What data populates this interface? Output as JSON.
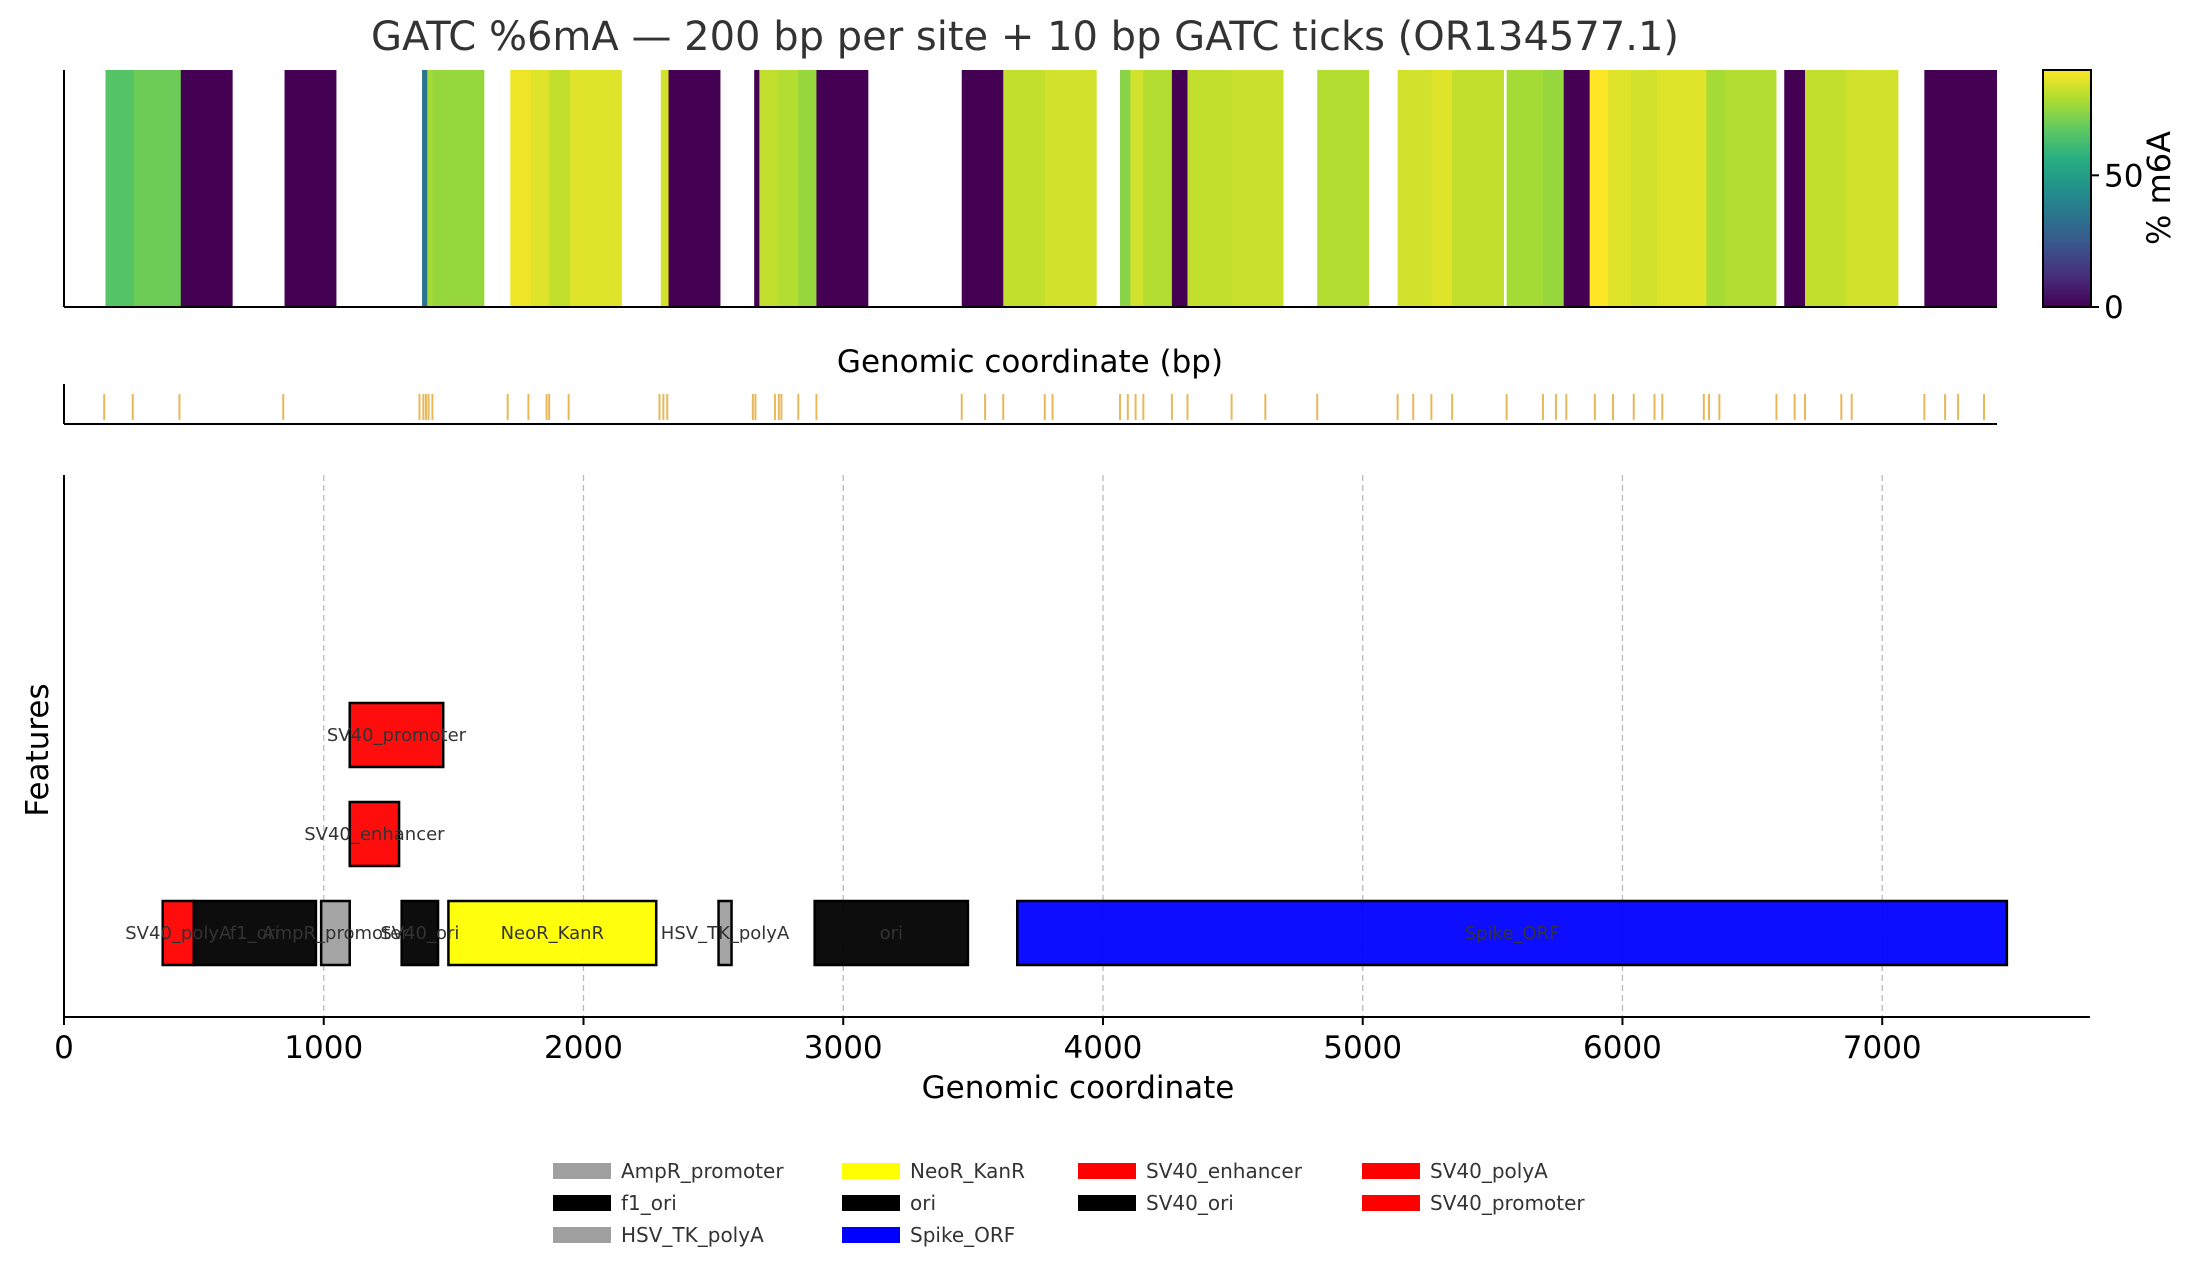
{
  "title": "GATC %6mA — 200 bp per site + 10 bp GATC ticks (OR134577.1)",
  "colorbar": {
    "label": "% m6A",
    "ticks": [
      "0",
      "50"
    ],
    "range": [
      0,
      90
    ],
    "colormap": "viridis"
  },
  "colors": {
    "tick": "#e8b75a",
    "grid": "#bbbbbb",
    "axis": "#000000"
  },
  "chart_data": [
    {
      "type": "heatmap",
      "xlabel": "Genomic coordinate (bp)",
      "xlim": [
        0,
        7450
      ],
      "bin_width_bp": 200,
      "sites": [
        {
          "x": 160,
          "v": 66
        },
        {
          "x": 270,
          "v": 70
        },
        {
          "x": 450,
          "v": 0
        },
        {
          "x": 850,
          "v": 0
        },
        {
          "x": 1380,
          "v": 35
        },
        {
          "x": 1400,
          "v": 78
        },
        {
          "x": 1420,
          "v": 76
        },
        {
          "x": 1720,
          "v": 88
        },
        {
          "x": 1800,
          "v": 86
        },
        {
          "x": 1870,
          "v": 82
        },
        {
          "x": 1950,
          "v": 86
        },
        {
          "x": 2300,
          "v": 84
        },
        {
          "x": 2330,
          "v": 0
        },
        {
          "x": 2660,
          "v": 0
        },
        {
          "x": 2680,
          "v": 82
        },
        {
          "x": 2750,
          "v": 80
        },
        {
          "x": 2830,
          "v": 76
        },
        {
          "x": 2900,
          "v": 0
        },
        {
          "x": 3460,
          "v": 0
        },
        {
          "x": 3620,
          "v": 82
        },
        {
          "x": 3780,
          "v": 84
        },
        {
          "x": 4070,
          "v": 74
        },
        {
          "x": 4110,
          "v": 84
        },
        {
          "x": 4160,
          "v": 80
        },
        {
          "x": 4270,
          "v": 0
        },
        {
          "x": 4330,
          "v": 82
        },
        {
          "x": 4500,
          "v": 83
        },
        {
          "x": 4830,
          "v": 80
        },
        {
          "x": 5140,
          "v": 84
        },
        {
          "x": 5270,
          "v": 86
        },
        {
          "x": 5350,
          "v": 82
        },
        {
          "x": 5560,
          "v": 78
        },
        {
          "x": 5700,
          "v": 76
        },
        {
          "x": 5780,
          "v": 0
        },
        {
          "x": 5880,
          "v": 90
        },
        {
          "x": 5950,
          "v": 86
        },
        {
          "x": 6040,
          "v": 84
        },
        {
          "x": 6140,
          "v": 86
        },
        {
          "x": 6330,
          "v": 78
        },
        {
          "x": 6400,
          "v": 80
        },
        {
          "x": 6630,
          "v": 0
        },
        {
          "x": 6710,
          "v": 82
        },
        {
          "x": 6870,
          "v": 84
        },
        {
          "x": 7170,
          "v": 0
        },
        {
          "x": 7250,
          "v": 0
        },
        {
          "x": 7310,
          "v": 0
        }
      ]
    },
    {
      "type": "ticks",
      "description": "10 bp GATC ticks",
      "positions": [
        155,
        265,
        445,
        845,
        1370,
        1385,
        1395,
        1405,
        1420,
        1710,
        1790,
        1860,
        1870,
        1945,
        2295,
        2310,
        2325,
        2655,
        2665,
        2740,
        2755,
        2765,
        2830,
        2900,
        3460,
        3550,
        3620,
        3780,
        3810,
        4070,
        4100,
        4130,
        4160,
        4270,
        4330,
        4500,
        4630,
        4830,
        5140,
        5200,
        5270,
        5350,
        5560,
        5700,
        5750,
        5790,
        5900,
        5970,
        6050,
        6130,
        6160,
        6320,
        6340,
        6380,
        6600,
        6670,
        6710,
        6850,
        6890,
        7170,
        7250,
        7300,
        7400
      ]
    },
    {
      "type": "bar",
      "xlabel": "Genomic coordinate",
      "ylabel": "Features",
      "xlim": [
        0,
        7800
      ],
      "xticks": [
        0,
        1000,
        2000,
        3000,
        4000,
        5000,
        6000,
        7000
      ],
      "grid": "x, dashed",
      "features": [
        {
          "name": "SV40_polyA",
          "start": 380,
          "end": 500,
          "row": 0,
          "color": "#ff0000"
        },
        {
          "name": "f1_ori",
          "start": 500,
          "end": 970,
          "row": 0,
          "color": "#000000"
        },
        {
          "name": "AmpR_promoter",
          "start": 990,
          "end": 1100,
          "row": 0,
          "color": "#a0a0a0"
        },
        {
          "name": "SV40_ori",
          "start": 1300,
          "end": 1440,
          "row": 0,
          "color": "#000000"
        },
        {
          "name": "NeoR_KanR",
          "start": 1480,
          "end": 2280,
          "row": 0,
          "color": "#ffff00"
        },
        {
          "name": "HSV_TK_polyA",
          "start": 2520,
          "end": 2570,
          "row": 0,
          "color": "#a0a0a0"
        },
        {
          "name": "ori",
          "start": 2890,
          "end": 3480,
          "row": 0,
          "color": "#000000"
        },
        {
          "name": "Spike_ORF",
          "start": 3670,
          "end": 7480,
          "row": 0,
          "color": "#0000ff"
        },
        {
          "name": "SV40_enhancer",
          "start": 1100,
          "end": 1290,
          "row": 1,
          "color": "#ff0000"
        },
        {
          "name": "SV40_promoter",
          "start": 1100,
          "end": 1460,
          "row": 2,
          "color": "#ff0000"
        }
      ]
    }
  ],
  "legend": [
    {
      "label": "AmpR_promoter",
      "color": "#a0a0a0"
    },
    {
      "label": "f1_ori",
      "color": "#000000"
    },
    {
      "label": "HSV_TK_polyA",
      "color": "#a0a0a0"
    },
    {
      "label": "NeoR_KanR",
      "color": "#ffff00"
    },
    {
      "label": "ori",
      "color": "#000000"
    },
    {
      "label": "Spike_ORF",
      "color": "#0000ff"
    },
    {
      "label": "SV40_enhancer",
      "color": "#ff0000"
    },
    {
      "label": "SV40_ori",
      "color": "#000000"
    },
    {
      "label": "SV40_polyA",
      "color": "#ff0000"
    },
    {
      "label": "SV40_promoter",
      "color": "#ff0000"
    }
  ]
}
